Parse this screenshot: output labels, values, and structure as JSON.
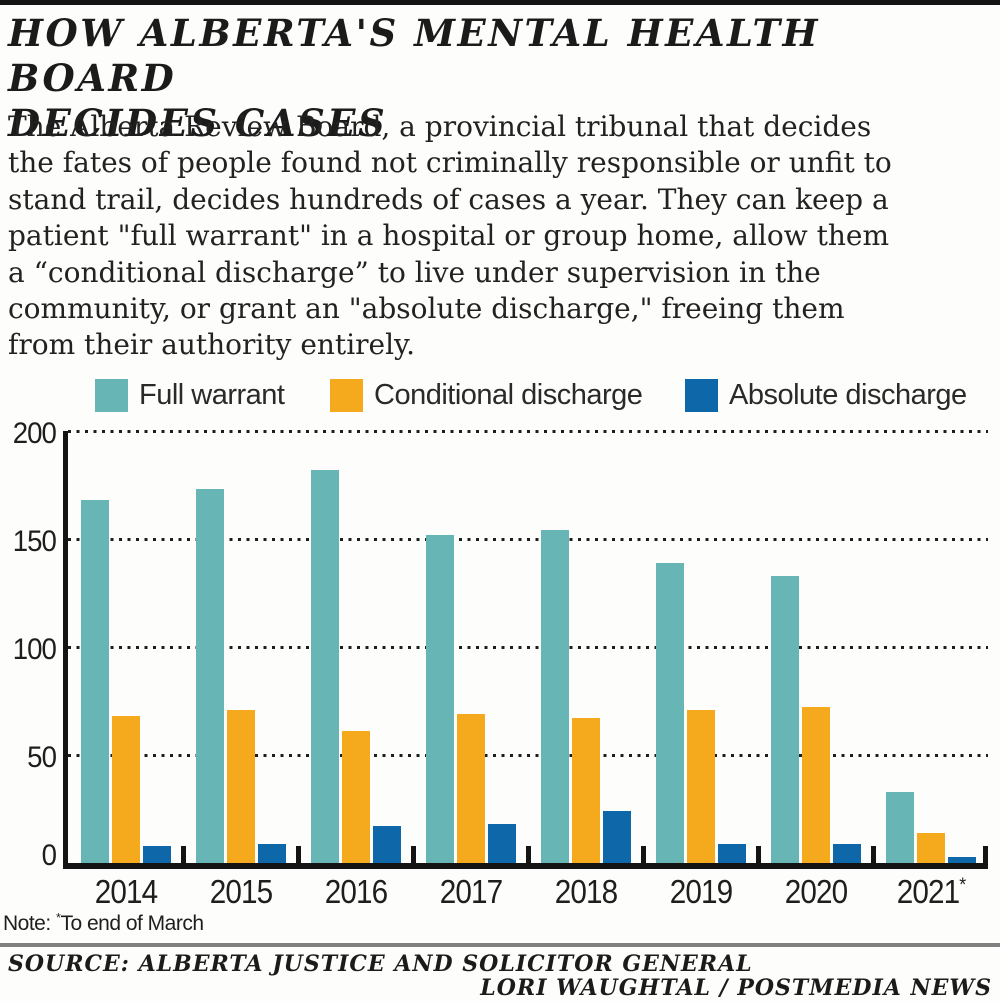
{
  "header": {
    "title_line1": "HOW ALBERTA'S MENTAL HEALTH BOARD",
    "title_line2": "DECIDES CASES",
    "intro_lines": [
      "The Alberta Review Board, a provincial tribunal that decides",
      "the fates of people found not criminally responsible or unfit to",
      "stand trail, decides hundreds of cases a year. They can keep a",
      "patient \"full warrant\" in a hospital or group home, allow them",
      "a “conditional discharge” to live under supervision in the",
      "community, or grant an \"absolute discharge,\" freeing them",
      "from their authority entirely."
    ]
  },
  "chart_data": {
    "type": "bar",
    "categories": [
      "2014",
      "2015",
      "2016",
      "2017",
      "2018",
      "2019",
      "2020",
      "2021*"
    ],
    "series": [
      {
        "name": "Full warrant",
        "color": "#68B5B5",
        "values": [
          168,
          173,
          182,
          152,
          154,
          139,
          133,
          33
        ]
      },
      {
        "name": "Conditional discharge",
        "color": "#F5A91D",
        "values": [
          68,
          71,
          61,
          69,
          67,
          71,
          72,
          14
        ]
      },
      {
        "name": "Absolute discharge",
        "color": "#0E67A9",
        "values": [
          8,
          9,
          17,
          18,
          24,
          9,
          9,
          3
        ]
      }
    ],
    "title": "How Alberta's mental health board decides cases",
    "xlabel": "",
    "ylabel": "",
    "ylim": [
      0,
      200
    ],
    "yticks": [
      0,
      50,
      100,
      150,
      200
    ],
    "grid": "horizontal dotted",
    "legend_position": "top",
    "footnote_marker_on": "2021*"
  },
  "note": {
    "label": "Note:",
    "asterisk": "*",
    "text": "To end of March"
  },
  "footer": {
    "source": "SOURCE: ALBERTA JUSTICE AND SOLICITOR GENERAL",
    "credit": "LORI WAUGHTAL / POSTMEDIA NEWS"
  },
  "colors": {
    "ink": "#1E1E1E",
    "top_bar": "#141414",
    "rule_gray": "#7F7F7F",
    "background": "#FDFDFB",
    "full_warrant": "#68B5B5",
    "conditional_discharge": "#F5A91D",
    "absolute_discharge": "#0E67A9"
  }
}
